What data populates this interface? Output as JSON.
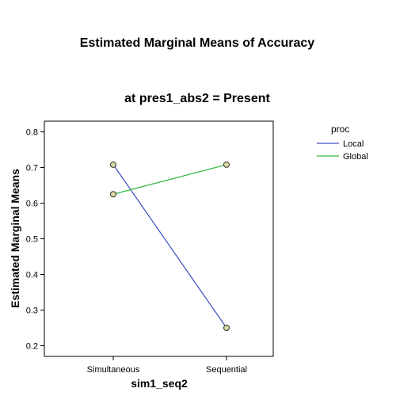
{
  "chart_data": {
    "type": "line",
    "title": "Estimated Marginal Means of Accuracy",
    "subtitle": "at pres1_abs2 = Present",
    "xlabel": "sim1_seq2",
    "ylabel": "Estimated Marginal Means",
    "categories": [
      "Simultaneous",
      "Sequential"
    ],
    "ylim": [
      0.17,
      0.83
    ],
    "yticks": [
      0.2,
      0.3,
      0.4,
      0.5,
      0.6,
      0.7,
      0.8
    ],
    "ytick_labels": [
      "0.2",
      "0.3",
      "0.4",
      "0.5",
      "0.6",
      "0.7",
      "0.8"
    ],
    "grid": false,
    "legend": {
      "title": "proc",
      "placement": "right"
    },
    "series": [
      {
        "name": "Local",
        "color": "#3b4cc0",
        "values": [
          0.708,
          0.25
        ]
      },
      {
        "name": "Global",
        "color": "#2db83d",
        "values": [
          0.625,
          0.708
        ]
      }
    ],
    "marker": {
      "fill": "#d8d8a0",
      "stroke": "#333333"
    }
  }
}
